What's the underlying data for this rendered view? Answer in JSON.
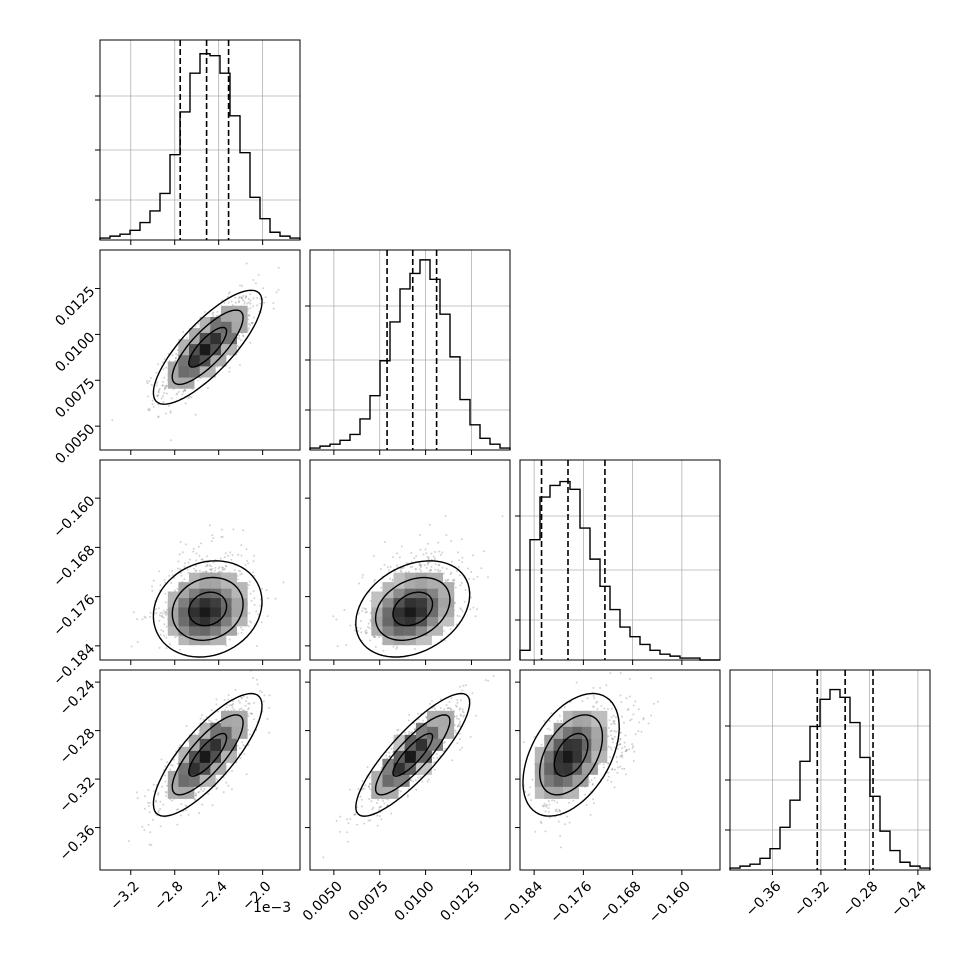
{
  "chart_data": {
    "type": "corner",
    "offset_text": "1e−3",
    "params": [
      {
        "range": [
          -3.48,
          -1.66
        ],
        "ticks": [
          -3.2,
          -2.8,
          -2.4,
          -2.0
        ],
        "tick_labels": [
          "−3.2",
          "−2.8",
          "−2.4",
          "−2.0"
        ],
        "mean": -2.5,
        "sd": 0.215,
        "quantiles": [
          -2.75,
          -2.51,
          -2.31
        ],
        "hist": [
          1,
          2,
          3,
          5,
          9,
          15,
          24,
          44,
          66,
          86,
          96,
          95,
          86,
          64,
          45,
          22,
          11,
          4,
          2,
          1
        ],
        "hist_max": 100
      },
      {
        "range": [
          0.0037,
          0.0146
        ],
        "ticks": [
          0.005,
          0.0075,
          0.01,
          0.0125
        ],
        "tick_labels": [
          "0.0050",
          "0.0075",
          "0.0100",
          "0.0125"
        ],
        "mean": 0.0093,
        "sd": 0.00135,
        "quantiles": [
          0.0079,
          0.0093,
          0.0106
        ],
        "hist": [
          1,
          2,
          3,
          5,
          8,
          16,
          28,
          46,
          66,
          83,
          91,
          98,
          88,
          70,
          48,
          26,
          13,
          6,
          3,
          1
        ],
        "hist_max": 100
      },
      {
        "range": [
          -0.1863,
          -0.1538
        ],
        "ticks": [
          -0.184,
          -0.176,
          -0.168,
          -0.16
        ],
        "tick_labels": [
          "−0.184",
          "−0.176",
          "−0.168",
          "−0.160"
        ],
        "mean": -0.178,
        "sd": 0.0034,
        "quantiles": [
          -0.1828,
          -0.1785,
          -0.1725
        ],
        "hist": [
          5,
          62,
          84,
          90,
          92,
          88,
          68,
          52,
          38,
          26,
          17,
          12,
          8,
          5,
          3,
          2,
          1,
          1,
          0,
          0
        ],
        "hist_max": 100
      },
      {
        "range": [
          -0.395,
          -0.23
        ],
        "ticks": [
          -0.36,
          -0.32,
          -0.28,
          -0.24
        ],
        "tick_labels": [
          "−0.36",
          "−0.32",
          "−0.28",
          "−0.24"
        ],
        "mean": -0.3,
        "sd": 0.022,
        "quantiles": [
          -0.323,
          -0.3,
          -0.277
        ],
        "hist": [
          1,
          2,
          3,
          6,
          11,
          22,
          36,
          56,
          74,
          88,
          93,
          89,
          76,
          58,
          38,
          20,
          10,
          4,
          2,
          1
        ],
        "hist_max": 100
      }
    ],
    "correlations": {
      "1-0": 0.8,
      "2-0": 0.15,
      "2-1": 0.3,
      "3-0": 0.8,
      "3-1": 0.85,
      "3-2": 0.45
    },
    "colors": {
      "line": "#000000",
      "grid": "#b0b0b0",
      "points": "#7f7f7f"
    }
  }
}
